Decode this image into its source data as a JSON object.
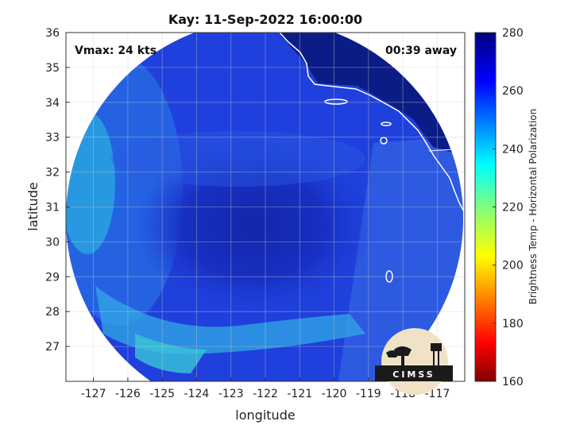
{
  "title": "Kay: 11-Sep-2022 16:00:00",
  "vmax_label": "Vmax: 24 kts",
  "time_away": "00:39 away",
  "xlabel": "longitude",
  "ylabel": "latitude",
  "colorbar_label": "Brightness Temp - Horizontal Polarization",
  "logo_text": "CIMSS",
  "map_data": {
    "type": "heatmap",
    "x_ticks": [
      -127,
      -126,
      -125,
      -124,
      -123,
      -122,
      -121,
      -120,
      -119,
      -118,
      -117
    ],
    "y_ticks": [
      27,
      28,
      29,
      30,
      31,
      32,
      33,
      34,
      35,
      36
    ],
    "xlim": [
      -127.8,
      -116.2
    ],
    "ylim": [
      26,
      36
    ],
    "grid": true,
    "colorbar": {
      "ticks": [
        160,
        180,
        200,
        220,
        240,
        260,
        280
      ],
      "range": [
        160,
        280
      ],
      "colormap": "jet"
    },
    "colors": {
      "ocean_cold": "#1e3cd6",
      "ocean_core": "#1428b4",
      "land": "#0a1a7a",
      "rainband": "#28b4dc",
      "coastline": "#ffffff"
    }
  }
}
